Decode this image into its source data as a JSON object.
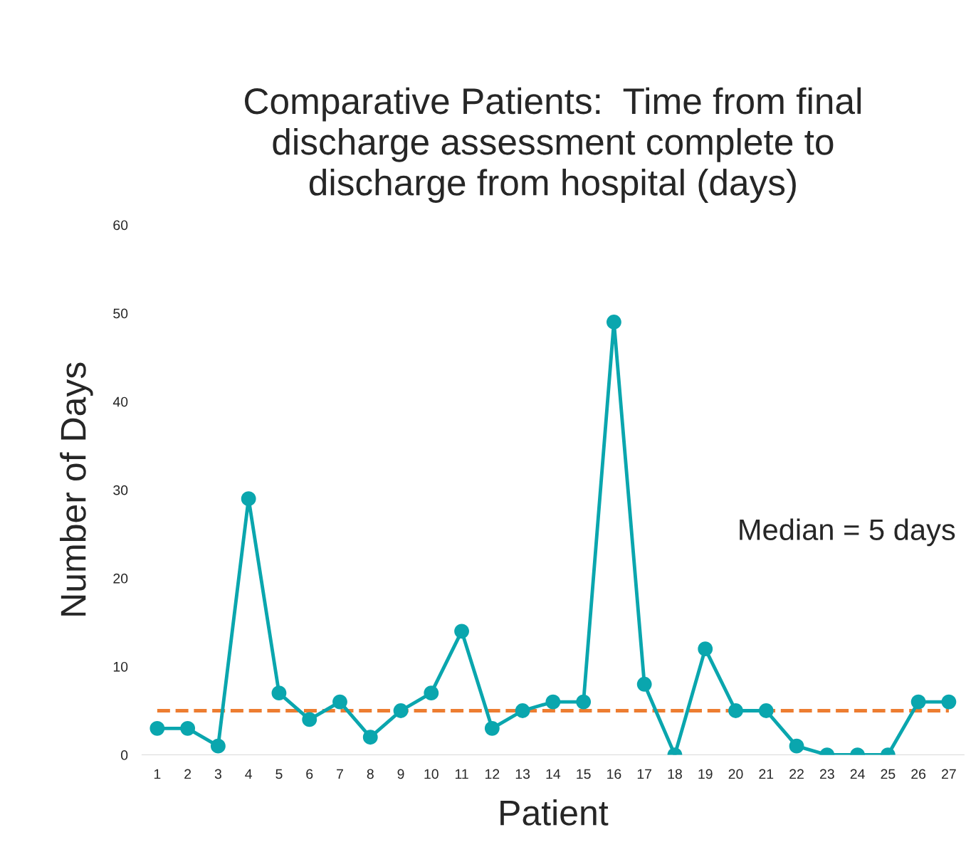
{
  "chart_data": {
    "type": "line",
    "title": "Comparative Patients:  Time from final\ndischarge assessment complete to\ndischarge from hospital (days)",
    "xlabel": "Patient",
    "ylabel": "Number of Days",
    "categories": [
      "1",
      "2",
      "3",
      "4",
      "5",
      "6",
      "7",
      "8",
      "9",
      "10",
      "11",
      "12",
      "13",
      "14",
      "15",
      "16",
      "17",
      "18",
      "19",
      "20",
      "21",
      "22",
      "23",
      "24",
      "25",
      "26",
      "27"
    ],
    "series": [
      {
        "color": "#0aa6ae",
        "values": [
          3,
          3,
          1,
          29,
          7,
          4,
          6,
          2,
          5,
          7,
          14,
          3,
          5,
          6,
          6,
          49,
          8,
          0,
          12,
          5,
          5,
          1,
          0,
          0,
          0,
          6,
          6
        ]
      }
    ],
    "ylim": [
      0,
      60
    ],
    "yticks": [
      0,
      10,
      20,
      30,
      40,
      50,
      60
    ],
    "ref_lines": [
      {
        "axis": "y",
        "value": 5,
        "color": "#ed7d31",
        "line_style": "dashed"
      }
    ],
    "annotations": [
      "Median = 5 days"
    ],
    "marker": "circle",
    "line_style": "solid",
    "grid": false,
    "legend": false
  }
}
